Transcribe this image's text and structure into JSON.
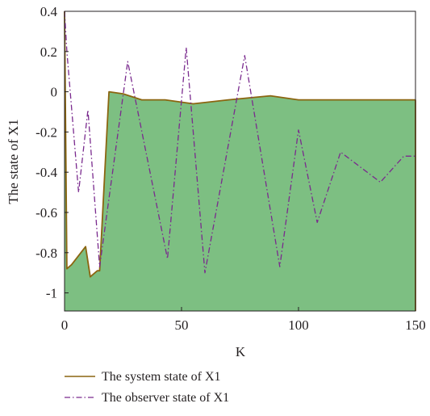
{
  "chart_data": {
    "type": "area",
    "title": "",
    "xlabel": "K",
    "ylabel": "The state of X1",
    "xlim": [
      0,
      150
    ],
    "ylim": [
      -1.09,
      0.4
    ],
    "xticks": [
      0,
      50,
      100,
      150
    ],
    "yticks": [
      0.4,
      0.2,
      0,
      -0.2,
      -0.4,
      -0.6,
      -0.8,
      -1
    ],
    "xtick_labels": [
      "0",
      "50",
      "100",
      "150"
    ],
    "ytick_labels": [
      "0.4",
      "0.2",
      "0",
      "-0.2",
      "-0.4",
      "-0.6",
      "-0.8",
      "-1"
    ],
    "grid": false,
    "legend_position": "bottom",
    "series": [
      {
        "name": "The system state of X1",
        "style": "solid filled area",
        "line_color": "#8B6510",
        "fill_color": "#7DBF82",
        "x": [
          0,
          1,
          3,
          9,
          11,
          14,
          15,
          19,
          25,
          33,
          43,
          55,
          70,
          88,
          100,
          120,
          150
        ],
        "y": [
          0.4,
          -0.88,
          -0.86,
          -0.77,
          -0.92,
          -0.89,
          -0.89,
          0.0,
          -0.01,
          -0.04,
          -0.04,
          -0.06,
          -0.04,
          -0.02,
          -0.04,
          -0.04,
          -0.04
        ]
      },
      {
        "name": "The observer state of X1",
        "style": "dash-dot",
        "line_color": "#7A2A8E",
        "x": [
          0,
          1,
          6,
          10,
          15,
          27,
          44,
          52,
          60,
          77,
          92,
          100,
          108,
          118,
          135,
          145,
          150
        ],
        "y": [
          0.4,
          0.2,
          -0.5,
          -0.09,
          -0.87,
          0.15,
          -0.83,
          0.22,
          -0.9,
          0.18,
          -0.87,
          -0.19,
          -0.65,
          -0.3,
          -0.45,
          -0.32,
          -0.32
        ]
      }
    ]
  }
}
